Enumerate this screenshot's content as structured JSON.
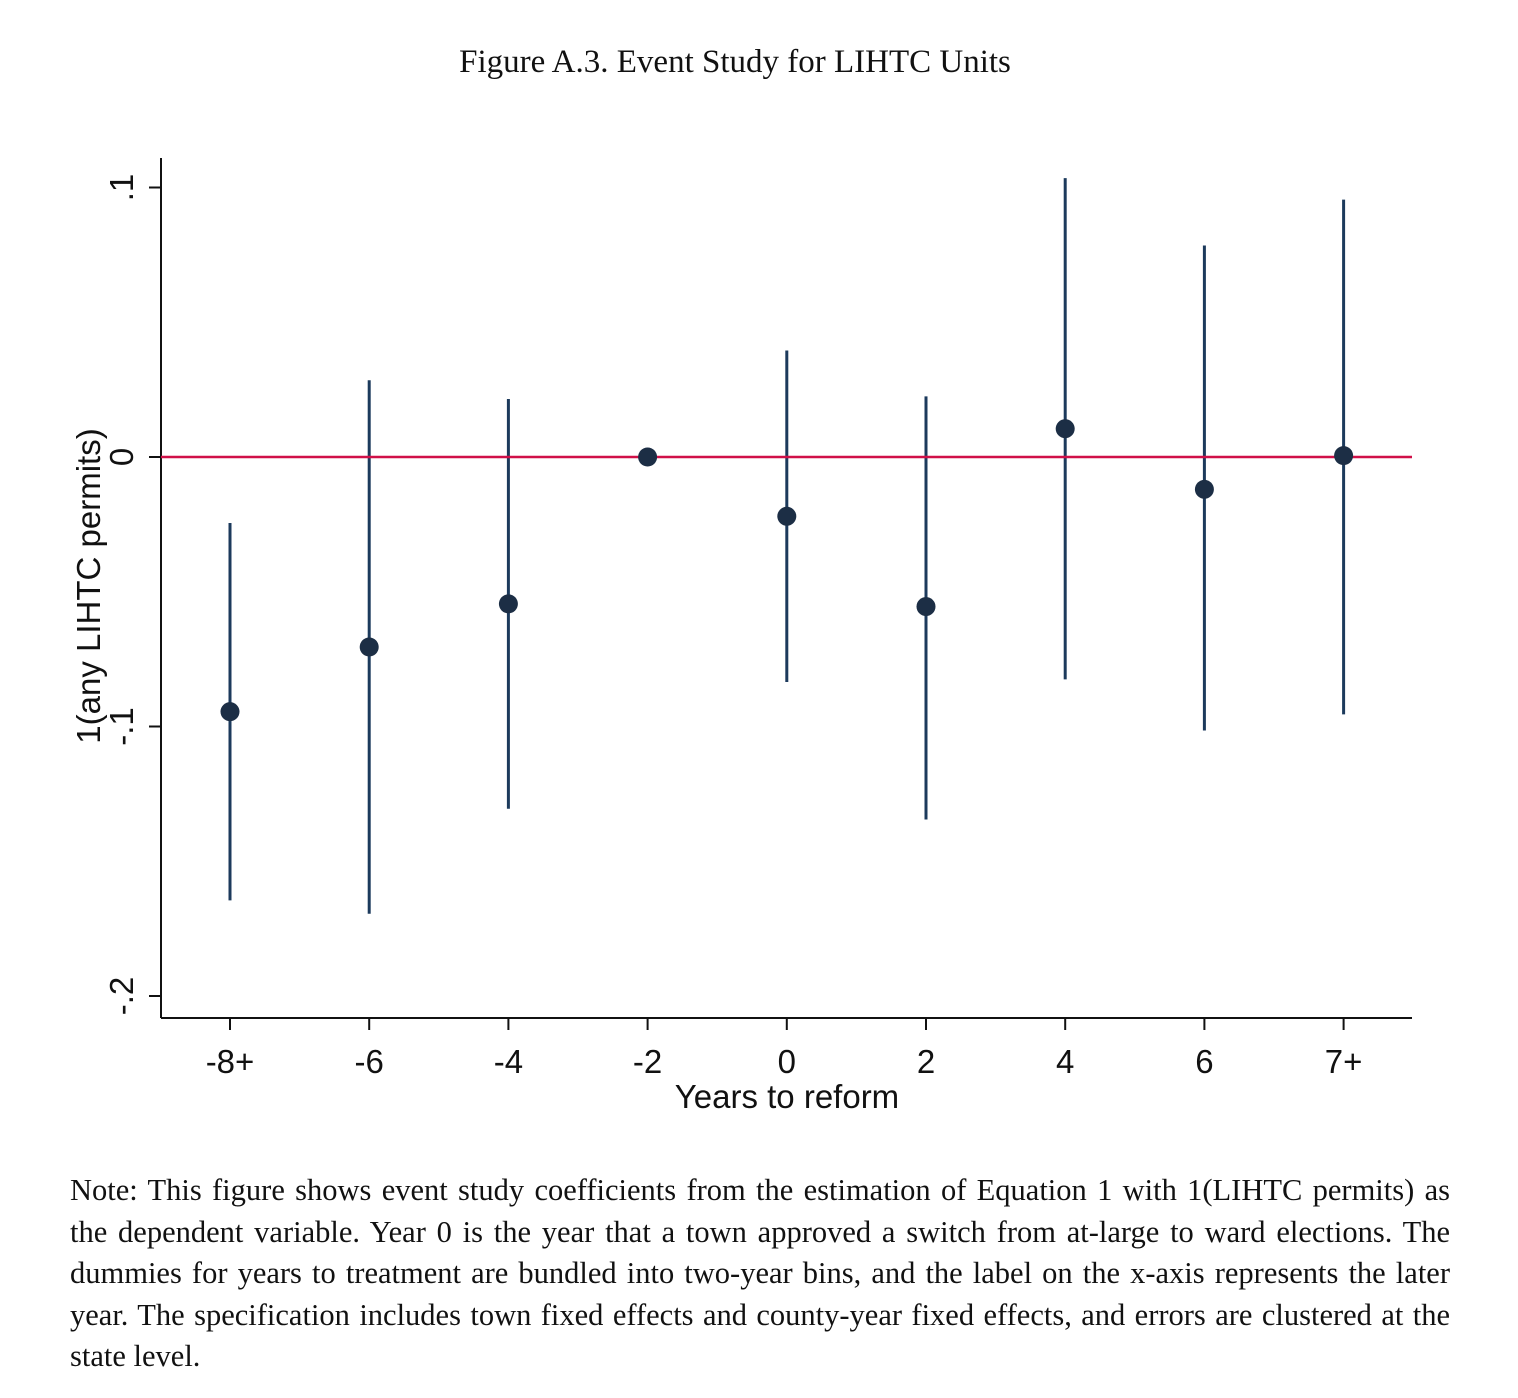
{
  "figure_title": "Figure A.3. Event Study for LIHTC Units",
  "note": "Note: This figure shows event study coefficients from the estimation of Equation 1 with 1(LIHTC permits) as the dependent variable. Year 0 is the year that a town approved a switch from at-large to ward elections. The dummies for years to treatment are bundled into two-year bins, and the label on the x-axis represents the later year. The specification includes town fixed effects and county-year fixed effects, and errors are clustered at the state level.",
  "colors": {
    "marker": "#1c2e45",
    "ci_line": "#1c3a5c",
    "reference_line": "#d01048",
    "axis": "#111111"
  },
  "chart_data": {
    "type": "scatter",
    "title": "",
    "xlabel": "Years to reform",
    "ylabel": "1(any LIHTC permits)",
    "categories": [
      "-8+",
      "-6",
      "-4",
      "-2",
      "0",
      "2",
      "4",
      "6",
      "7+"
    ],
    "y_ticks": [
      {
        "value": -0.2,
        "label": "-.2"
      },
      {
        "value": -0.1,
        "label": "-.1"
      },
      {
        "value": 0,
        "label": "0"
      },
      {
        "value": 0.1,
        "label": ".1"
      }
    ],
    "ylim": [
      -0.208,
      0.112
    ],
    "reference_line_y": 0,
    "grid": false,
    "series": [
      {
        "coefficients": [
          -0.0945,
          -0.0705,
          -0.0545,
          0.0,
          -0.022,
          -0.0555,
          0.0105,
          -0.012,
          0.0005
        ],
        "ci_lower": [
          -0.1645,
          -0.1695,
          -0.1305,
          0.0,
          -0.0835,
          -0.1345,
          -0.0825,
          -0.1015,
          -0.0955
        ],
        "ci_upper": [
          -0.0245,
          0.0285,
          0.0215,
          0.0,
          0.0395,
          0.0225,
          0.1035,
          0.0785,
          0.0955
        ]
      }
    ]
  }
}
